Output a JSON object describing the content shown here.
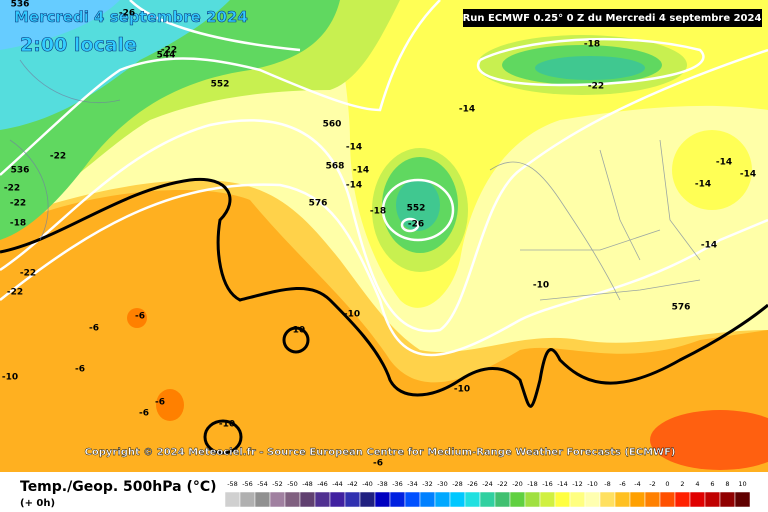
{
  "header": {
    "date": "Mercredi 4 septembre 2024",
    "time": "2:00 locale",
    "run": "Run ECMWF 0.25° 0 Z du Mercredi 4 septembre 2024"
  },
  "copyright": "Copyright © 2024 Meteociel.fr - Source European Centre for Medium-Range Weather Forecasts (ECMWF)",
  "footer": {
    "title": "Temp./Geop. 500hPa (°C)",
    "step": "(+ 0h)"
  },
  "legend": {
    "values": [
      -58,
      -56,
      -54,
      -52,
      -50,
      -48,
      -46,
      -44,
      -42,
      -40,
      -38,
      -36,
      -34,
      -32,
      -30,
      -28,
      -26,
      -24,
      -22,
      -20,
      -18,
      -16,
      -14,
      -12,
      -10,
      -8,
      -6,
      -4,
      -2,
      0,
      2,
      4,
      6,
      8,
      10
    ],
    "colors": [
      "#d0d0d0",
      "#b0b0b0",
      "#909090",
      "#a080a0",
      "#806080",
      "#604070",
      "#503090",
      "#4020a0",
      "#3030b0",
      "#202080",
      "#0000c0",
      "#0020e0",
      "#0050ff",
      "#0080ff",
      "#00a8ff",
      "#00c8ff",
      "#20e0e0",
      "#30d0a0",
      "#40c070",
      "#60d040",
      "#a0e040",
      "#d0f040",
      "#ffff40",
      "#ffff80",
      "#ffffb0",
      "#ffe060",
      "#ffc020",
      "#ffa000",
      "#ff8000",
      "#ff5000",
      "#ff2000",
      "#e00000",
      "#c00000",
      "#900000",
      "#600000"
    ]
  },
  "map": {
    "labels": [
      "-26",
      "544",
      "-22",
      "552",
      "536",
      "536",
      "-22",
      "-22",
      "-22",
      "-18",
      "-22",
      "-22",
      "560",
      "-14",
      "568",
      "-14",
      "-14",
      "576",
      "-18",
      "552",
      "-26",
      "-14",
      "-22",
      "-18",
      "-14",
      "-14",
      "-14",
      "-14",
      "-10",
      "576",
      "-10",
      "-10",
      "-6",
      "-6",
      "-6",
      "-10",
      "-10",
      "-6",
      "-6",
      "-10",
      "-6"
    ]
  }
}
